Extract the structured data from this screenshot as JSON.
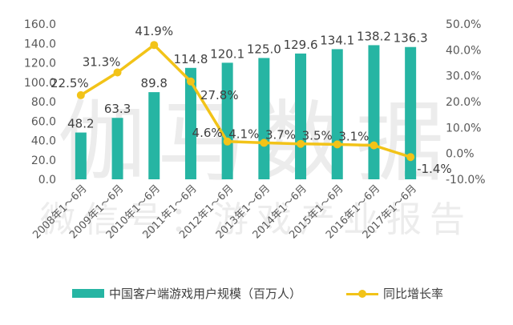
{
  "chart_data": {
    "type": "bar+line",
    "categories": [
      "2008年1～6月",
      "2009年1～6月",
      "2010年1～6月",
      "2011年1～6月",
      "2012年1～6月",
      "2013年1～6月",
      "2014年1～6月",
      "2015年1～6月",
      "2016年1～6月",
      "2017年1～6月"
    ],
    "series": [
      {
        "name": "中国客户端游戏用户规模（百万人）",
        "type": "bar",
        "axis": "left",
        "values": [
          48.2,
          63.3,
          89.8,
          114.8,
          120.1,
          125.0,
          129.6,
          134.1,
          138.2,
          136.3
        ],
        "labels": [
          "48.2",
          "63.3",
          "89.8",
          "114.8",
          "120.1",
          "125.0",
          "129.6",
          "134.1",
          "138.2",
          "136.3"
        ]
      },
      {
        "name": "同比增长率",
        "type": "line",
        "axis": "right",
        "values": [
          22.5,
          31.3,
          41.9,
          27.8,
          4.6,
          4.1,
          3.7,
          3.5,
          3.1,
          -1.4
        ],
        "labels": [
          "22.5%",
          "31.3%",
          "41.9%",
          "27.8%",
          "4.6%",
          "4.1%",
          "3.7%",
          "3.5%",
          "3.1%",
          "-1.4%"
        ]
      }
    ],
    "left_axis": {
      "min": 0,
      "max": 160,
      "ticks": [
        "0.0",
        "20.0",
        "40.0",
        "60.0",
        "80.0",
        "100.0",
        "120.0",
        "140.0",
        "160.0"
      ]
    },
    "right_axis": {
      "min": -10,
      "max": 50,
      "ticks": [
        "-10.0%",
        "0.0%",
        "10.0%",
        "20.0%",
        "30.0%",
        "40.0%",
        "50.0%"
      ]
    },
    "grid": false,
    "legend_position": "bottom",
    "colors": {
      "bar": "#26B5A3",
      "line": "#F2C318",
      "text": "#595959"
    }
  },
  "watermark": {
    "line1": "伽马数据",
    "line2": "微信号：游戏产业报告"
  }
}
